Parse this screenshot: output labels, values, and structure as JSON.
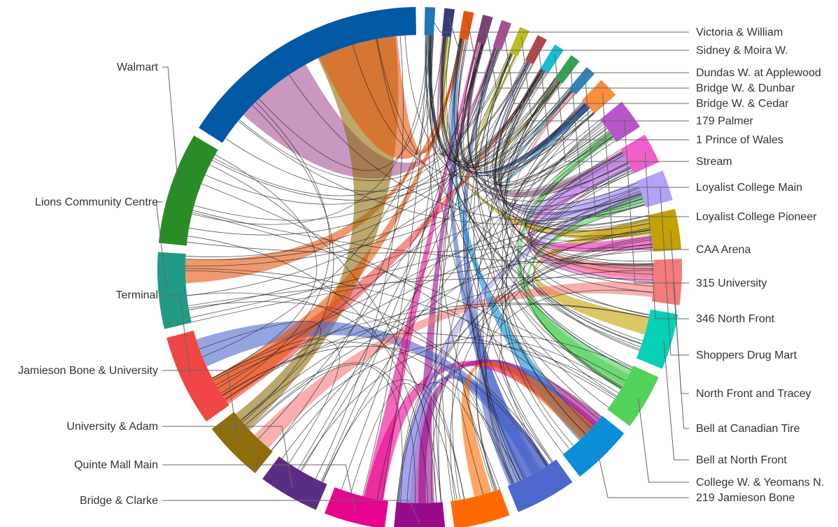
{
  "nodes": [
    {
      "label": "Victoria & William",
      "color": "#1f77b4",
      "value": 2
    },
    {
      "label": "Sidney & Moira W.",
      "color": "#393b79",
      "value": 2
    },
    {
      "label": "Dundas W. at Applewood",
      "color": "#e6550d",
      "value": 2
    },
    {
      "label": "Bridge W. & Dunbar",
      "color": "#7b4173",
      "value": 2
    },
    {
      "label": "Bridge W. & Cedar",
      "color": "#a55194",
      "value": 2
    },
    {
      "label": "179 Palmer",
      "color": "#bcbd22",
      "value": 2
    },
    {
      "label": "1 Prince of Wales",
      "color": "#ad494a",
      "value": 2
    },
    {
      "label": "Stream",
      "color": "#17becf",
      "value": 2
    },
    {
      "label": "Loyalist College Main",
      "color": "#31a354",
      "value": 2
    },
    {
      "label": "Loyalist College Pioneer",
      "color": "#3182bd",
      "value": 2
    },
    {
      "label": "CAA Arena",
      "color": "#fd8d3c",
      "value": 4
    },
    {
      "label": "315 University",
      "color": "#b955cc",
      "value": 6
    },
    {
      "label": "346 North Front",
      "color": "#ee5fc8",
      "value": 6
    },
    {
      "label": "Shoppers Drug Mart",
      "color": "#b3a2f7",
      "value": 6
    },
    {
      "label": "North Front and Tracey",
      "color": "#c4a000",
      "value": 8
    },
    {
      "label": "Bell at Canadian Tire",
      "color": "#f57a7a",
      "value": 9
    },
    {
      "label": "Bell at North Front",
      "color": "#08d0b8",
      "value": 11
    },
    {
      "label": "College W. & Yeomans N.",
      "color": "#52d25a",
      "value": 11
    },
    {
      "label": "219 Jamieson Bone",
      "color": "#0a8ed8",
      "value": 12
    },
    {
      "label": "",
      "color": "#4c68cc",
      "value": 12
    },
    {
      "label": "",
      "color": "#ff6a00",
      "value": 11
    },
    {
      "label": "Bridge & Clarke",
      "color": "#9a0b8c",
      "value": 10
    },
    {
      "label": "Quinte Mall Main",
      "color": "#e7058f",
      "value": 12
    },
    {
      "label": "University & Adam",
      "color": "#5a2d84",
      "value": 12
    },
    {
      "label": "Jamieson Bone & University",
      "color": "#8f6d0c",
      "value": 12
    },
    {
      "label": "Terminal",
      "color": "#f04545",
      "value": 18
    },
    {
      "label": "Lions Community Centre",
      "color": "#219a84",
      "value": 15
    },
    {
      "label": "Walmart",
      "color": "#2a8c26",
      "value": 22
    },
    {
      "label": "",
      "color": "#0158a5",
      "value": 50
    }
  ],
  "labels": {
    "right": [
      "Victoria & William",
      "Sidney & Moira W.",
      "Dundas W. at Applewood",
      "Bridge W. & Dunbar",
      "Bridge W. & Cedar",
      "179 Palmer",
      "1 Prince of Wales",
      "Stream",
      "Loyalist College Main",
      "Loyalist College Pioneer",
      "CAA Arena",
      "315 University",
      "346 North Front",
      "Shoppers Drug Mart",
      "North Front and Tracey",
      "Bell at Canadian Tire",
      "Bell at North Front",
      "College W. & Yeomans N.",
      "219 Jamieson Bone"
    ],
    "left": [
      "Walmart",
      "Lions Community Centre",
      "Terminal",
      "Jamieson Bone & University",
      "University & Adam",
      "Quinte Mall Main",
      "Bridge & Clarke"
    ]
  }
}
